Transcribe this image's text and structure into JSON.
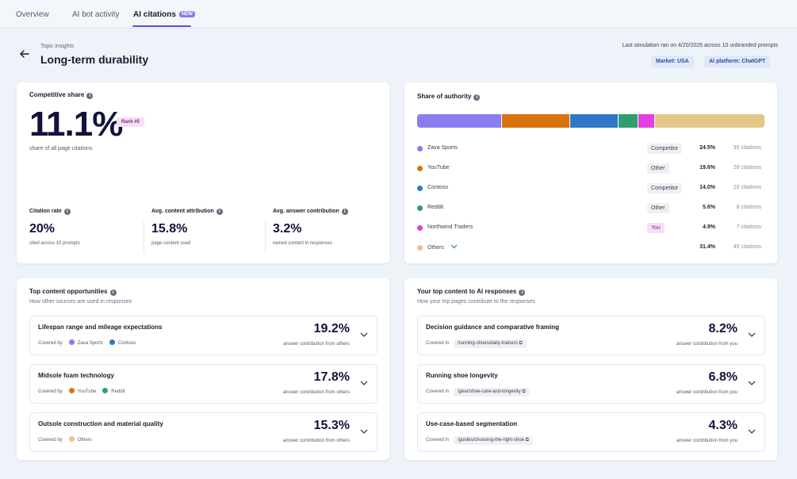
{
  "tabs": [
    {
      "label": "Overview"
    },
    {
      "label": "AI bot activity"
    },
    {
      "label": "AI citations",
      "badge": "NEW"
    }
  ],
  "header": {
    "topic_label": "Topic insights",
    "title": "Long-term durability",
    "simulation_text": "Last simulation ran on 4/20/2026 across 10 unbranded prompts",
    "market_chip": "Market: USA",
    "platform_chip": "AI platform: ChatGPT"
  },
  "competitive": {
    "title": "Competitive share",
    "value": "11.1%",
    "rank": "Rank #5",
    "caption": "share of all page citations",
    "metrics": [
      {
        "label": "Citation rate",
        "value": "20%",
        "caption": "cited across 10 prompts"
      },
      {
        "label": "Avg. content attribution",
        "value": "15.8%",
        "caption": "page content used"
      },
      {
        "label": "Avg. answer contribution",
        "value": "3.2%",
        "caption": "owned content in responses"
      }
    ]
  },
  "authority": {
    "title": "Share of authority",
    "rows": [
      {
        "name": "Zava Sports",
        "tag": "Competitor",
        "pct": "24.5%",
        "citations": "35 citations",
        "share": 24.5,
        "color": "#8b7cf0"
      },
      {
        "name": "YouTube",
        "tag": "Other",
        "pct": "19.6%",
        "citations": "28 citations",
        "share": 19.6,
        "color": "#d9730d"
      },
      {
        "name": "Contoso",
        "tag": "Competitor",
        "pct": "14.0%",
        "citations": "20 citations",
        "share": 14.0,
        "color": "#2f78c8"
      },
      {
        "name": "Reddit",
        "tag": "Other",
        "pct": "5.6%",
        "citations": "8 citations",
        "share": 5.6,
        "color": "#2e9e6e"
      },
      {
        "name": "Northwind Traders",
        "tag": "You",
        "pct": "4.9%",
        "citations": "7 citations",
        "share": 4.9,
        "color": "#e33ee0"
      },
      {
        "name": "Others",
        "tag": "",
        "pct": "31.4%",
        "citations": "45 citations",
        "share": 31.4,
        "color": "#e4c787"
      }
    ]
  },
  "opportunities": {
    "title": "Top content opportunities",
    "subtitle": "How other sources are used in responses",
    "covered_label": "Covered by",
    "items": [
      {
        "title": "Lifespan range and mileage expectations",
        "value": "19.2%",
        "caption": "answer contribution from others",
        "sources": [
          {
            "name": "Zava Sports",
            "color": "#8b7cf0"
          },
          {
            "name": "Contoso",
            "color": "#2f78c8"
          }
        ]
      },
      {
        "title": "Midsole foam technology",
        "value": "17.8%",
        "caption": "answer contribution from others",
        "sources": [
          {
            "name": "YouTube",
            "color": "#d9730d"
          },
          {
            "name": "Reddit",
            "color": "#2e9e6e"
          }
        ]
      },
      {
        "title": "Outsole construction and material quality",
        "value": "15.3%",
        "caption": "answer contribution from others",
        "sources": [
          {
            "name": "Others",
            "color": "#e4c787"
          }
        ]
      }
    ]
  },
  "your_content": {
    "title": "Your top content to AI responses",
    "subtitle": "How your top pages contribute to the responses",
    "covered_label": "Covered in",
    "items": [
      {
        "title": "Decision guidance and comparative framing",
        "path": "/running-shoes/daily-trainers",
        "value": "8.2%",
        "caption": "answer contribution from you"
      },
      {
        "title": "Running shoe longevity",
        "path": "/gear/shoe-care-and-longevity",
        "value": "6.8%",
        "caption": "answer contribution from you"
      },
      {
        "title": "Use-case-based segmentation",
        "path": "/guides/choosing-the-right-shoe",
        "value": "4.3%",
        "caption": "answer contribution from you"
      }
    ]
  }
}
